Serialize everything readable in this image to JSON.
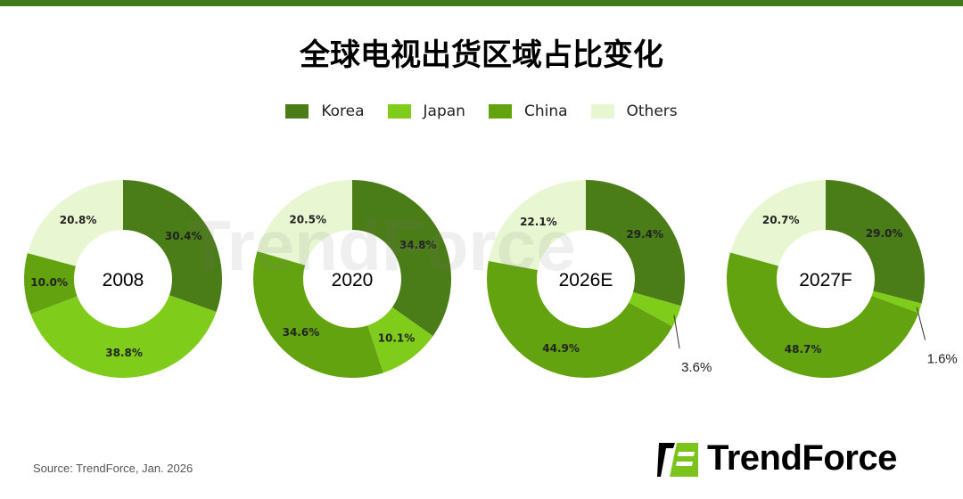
{
  "title": "全球电视出货区域占比变化",
  "legend": [
    {
      "label": "Korea",
      "color": "#4a7c17"
    },
    {
      "label": "Japan",
      "color": "#80cc1a"
    },
    {
      "label": "China",
      "color": "#62a30f"
    },
    {
      "label": "Others",
      "color": "#e8f7d2"
    }
  ],
  "chart_data": [
    {
      "type": "pie",
      "donut": true,
      "center_label": "2008",
      "categories": [
        "Korea",
        "Japan",
        "China",
        "Others"
      ],
      "values": [
        30.4,
        38.8,
        10.0,
        20.8
      ],
      "labels": [
        "30.4%",
        "38.8%",
        "10.0%",
        "20.8%"
      ]
    },
    {
      "type": "pie",
      "donut": true,
      "center_label": "2020",
      "categories": [
        "Korea",
        "Japan",
        "China",
        "Others"
      ],
      "values": [
        34.8,
        10.1,
        34.6,
        20.5
      ],
      "labels": [
        "34.8%",
        "10.1%",
        "34.6%",
        "20.5%"
      ]
    },
    {
      "type": "pie",
      "donut": true,
      "center_label": "2026E",
      "categories": [
        "Korea",
        "Japan",
        "China",
        "Others"
      ],
      "values": [
        29.4,
        3.6,
        44.9,
        22.1
      ],
      "labels": [
        "29.4%",
        "3.6%",
        "44.9%",
        "22.1%"
      ]
    },
    {
      "type": "pie",
      "donut": true,
      "center_label": "2027F",
      "categories": [
        "Korea",
        "Japan",
        "China",
        "Others"
      ],
      "values": [
        29.0,
        1.6,
        48.7,
        20.7
      ],
      "labels": [
        "29.0%",
        "1.6%",
        "48.7%",
        "20.7%"
      ]
    }
  ],
  "source": "Source: TrendForce, Jan. 2026",
  "logo_text": "TrendForce",
  "watermark": "TrendForce"
}
